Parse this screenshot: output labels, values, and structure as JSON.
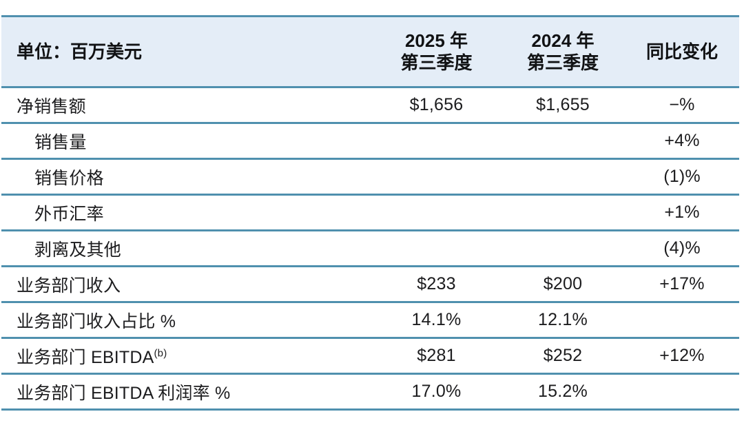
{
  "accent_colors": {
    "rule_line": "#4f90ae",
    "header_background": "#e4edf7",
    "text": "#1c1c1e",
    "page_background": "#ffffff"
  },
  "header": {
    "unit_label": "单位：百万美元",
    "col_2025": {
      "line1": "2025 年",
      "line2": "第三季度"
    },
    "col_2024": {
      "line1": "2024 年",
      "line2": "第三季度"
    },
    "col_yoy": "同比变化"
  },
  "table": {
    "rows": [
      {
        "label": "净销售额",
        "indent": false,
        "superscript": "",
        "q3_2025": "$1,656",
        "q3_2024": "$1,655",
        "yoy": "−%"
      },
      {
        "label": "销售量",
        "indent": true,
        "superscript": "",
        "q3_2025": "",
        "q3_2024": "",
        "yoy": "+4%"
      },
      {
        "label": "销售价格",
        "indent": true,
        "superscript": "",
        "q3_2025": "",
        "q3_2024": "",
        "yoy": "(1)%"
      },
      {
        "label": "外币汇率",
        "indent": true,
        "superscript": "",
        "q3_2025": "",
        "q3_2024": "",
        "yoy": "+1%"
      },
      {
        "label": "剥离及其他",
        "indent": true,
        "superscript": "",
        "q3_2025": "",
        "q3_2024": "",
        "yoy": "(4)%"
      },
      {
        "label": "业务部门收入",
        "indent": false,
        "superscript": "",
        "q3_2025": "$233",
        "q3_2024": "$200",
        "yoy": "+17%"
      },
      {
        "label": "业务部门收入占比 %",
        "indent": false,
        "superscript": "",
        "q3_2025": "14.1%",
        "q3_2024": "12.1%",
        "yoy": ""
      },
      {
        "label": "业务部门 EBITDA",
        "indent": false,
        "superscript": "(b)",
        "q3_2025": "$281",
        "q3_2024": "$252",
        "yoy": "+12%"
      },
      {
        "label": "业务部门 EBITDA 利润率 %",
        "indent": false,
        "superscript": "",
        "q3_2025": "17.0%",
        "q3_2024": "15.2%",
        "yoy": ""
      }
    ]
  },
  "chart_data": {
    "type": "table",
    "title": "单位：百万美元",
    "columns": [
      "单位：百万美元",
      "2025 年 第三季度",
      "2024 年 第三季度",
      "同比变化"
    ],
    "rows": [
      [
        "净销售额",
        "$1,656",
        "$1,655",
        "−%"
      ],
      [
        "销售量",
        "",
        "",
        "+4%"
      ],
      [
        "销售价格",
        "",
        "",
        "(1)%"
      ],
      [
        "外币汇率",
        "",
        "",
        "+1%"
      ],
      [
        "剥离及其他",
        "",
        "",
        "(4)%"
      ],
      [
        "业务部门收入",
        "$233",
        "$200",
        "+17%"
      ],
      [
        "业务部门收入占比 %",
        "14.1%",
        "12.1%",
        ""
      ],
      [
        "业务部门 EBITDA (b)",
        "$281",
        "$252",
        "+12%"
      ],
      [
        "业务部门 EBITDA 利润率 %",
        "17.0%",
        "15.2%",
        ""
      ]
    ]
  }
}
